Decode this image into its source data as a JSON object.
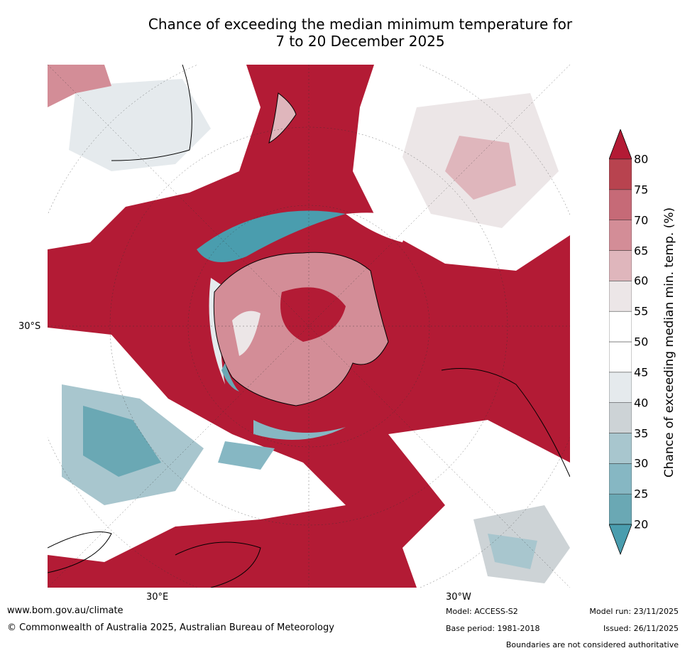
{
  "title": {
    "line1": "Chance of exceeding the median minimum temperature for",
    "line2": "7 to 20 December 2025"
  },
  "map_labels": {
    "lat_30s": "30°S",
    "lon_30e": "30°E",
    "lon_30w": "30°W"
  },
  "colorbar": {
    "label": "Chance of exceeding median min. temp. (%)",
    "ticks": [
      "20",
      "25",
      "30",
      "35",
      "40",
      "45",
      "50",
      "55",
      "60",
      "65",
      "70",
      "75",
      "80"
    ],
    "colors": [
      "#6aa8b4",
      "#86b7c3",
      "#a8c6ce",
      "#cdd3d6",
      "#e5eaed",
      "#ffffff",
      "#ffffff",
      "#ece6e7",
      "#dfb6bc",
      "#d38d97",
      "#c66a77",
      "#b8434f"
    ],
    "low_color": "#4a9dae",
    "high_color": "#b31b35"
  },
  "footer": {
    "url": "www.bom.gov.au/climate",
    "copyright": "© Commonwealth of Australia 2025, Australian Bureau of Meteorology",
    "model": "Model: ACCESS-S2",
    "base_period": "Base period: 1981-2018",
    "model_run": "Model run: 23/11/2025",
    "issued": "Issued: 26/11/2025",
    "disclaimer": "Boundaries are not considered authoritative"
  }
}
